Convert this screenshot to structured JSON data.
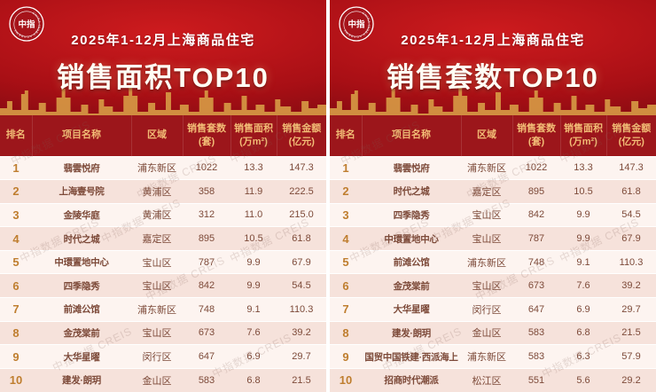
{
  "watermark": "中指数据 CREIS",
  "logo": {
    "center_text": "中指",
    "ring_text": "CHINA INDEX ACADEMY"
  },
  "columns_display": [
    "排名",
    "项目名称",
    "区域",
    "销售套数\n(套)",
    "销售面积\n(万m²)",
    "销售金额\n(亿元)"
  ],
  "chart_data": [
    {
      "type": "table",
      "subtitle": "2025年1-12月上海商品住宅",
      "title": "销售面积TOP10",
      "columns": [
        "排名",
        "项目名称",
        "区域",
        "销售套数(套)",
        "销售面积(万m²)",
        "销售金额(亿元)"
      ],
      "rows": [
        [
          "1",
          "翡雲悦府",
          "浦东新区",
          "1022",
          "13.3",
          "147.3"
        ],
        [
          "2",
          "上海壹号院",
          "黄浦区",
          "358",
          "11.9",
          "222.5"
        ],
        [
          "3",
          "金陵华庭",
          "黄浦区",
          "312",
          "11.0",
          "215.0"
        ],
        [
          "4",
          "时代之城",
          "嘉定区",
          "895",
          "10.5",
          "61.8"
        ],
        [
          "5",
          "中環置地中心",
          "宝山区",
          "787",
          "9.9",
          "67.9"
        ],
        [
          "6",
          "四季隐秀",
          "宝山区",
          "842",
          "9.9",
          "54.5"
        ],
        [
          "7",
          "前滩公馆",
          "浦东新区",
          "748",
          "9.1",
          "110.3"
        ],
        [
          "8",
          "金茂棠前",
          "宝山区",
          "673",
          "7.6",
          "39.2"
        ],
        [
          "9",
          "大华星曜",
          "闵行区",
          "647",
          "6.9",
          "29.7"
        ],
        [
          "10",
          "建发·朗玥",
          "金山区",
          "583",
          "6.8",
          "21.5"
        ]
      ]
    },
    {
      "type": "table",
      "subtitle": "2025年1-12月上海商品住宅",
      "title": "销售套数TOP10",
      "columns": [
        "排名",
        "项目名称",
        "区域",
        "销售套数(套)",
        "销售面积(万m²)",
        "销售金额(亿元)"
      ],
      "rows": [
        [
          "1",
          "翡雲悦府",
          "浦东新区",
          "1022",
          "13.3",
          "147.3"
        ],
        [
          "2",
          "时代之城",
          "嘉定区",
          "895",
          "10.5",
          "61.8"
        ],
        [
          "3",
          "四季隐秀",
          "宝山区",
          "842",
          "9.9",
          "54.5"
        ],
        [
          "4",
          "中環置地中心",
          "宝山区",
          "787",
          "9.9",
          "67.9"
        ],
        [
          "5",
          "前滩公馆",
          "浦东新区",
          "748",
          "9.1",
          "110.3"
        ],
        [
          "6",
          "金茂棠前",
          "宝山区",
          "673",
          "7.6",
          "39.2"
        ],
        [
          "7",
          "大华星曜",
          "闵行区",
          "647",
          "6.9",
          "29.7"
        ],
        [
          "8",
          "建发·朗玥",
          "金山区",
          "583",
          "6.8",
          "21.5"
        ],
        [
          "9",
          "国贸中国铁建·西派海上",
          "浦东新区",
          "583",
          "6.3",
          "57.9"
        ],
        [
          "10",
          "招商时代潮派",
          "松江区",
          "551",
          "5.6",
          "29.2"
        ]
      ]
    }
  ]
}
